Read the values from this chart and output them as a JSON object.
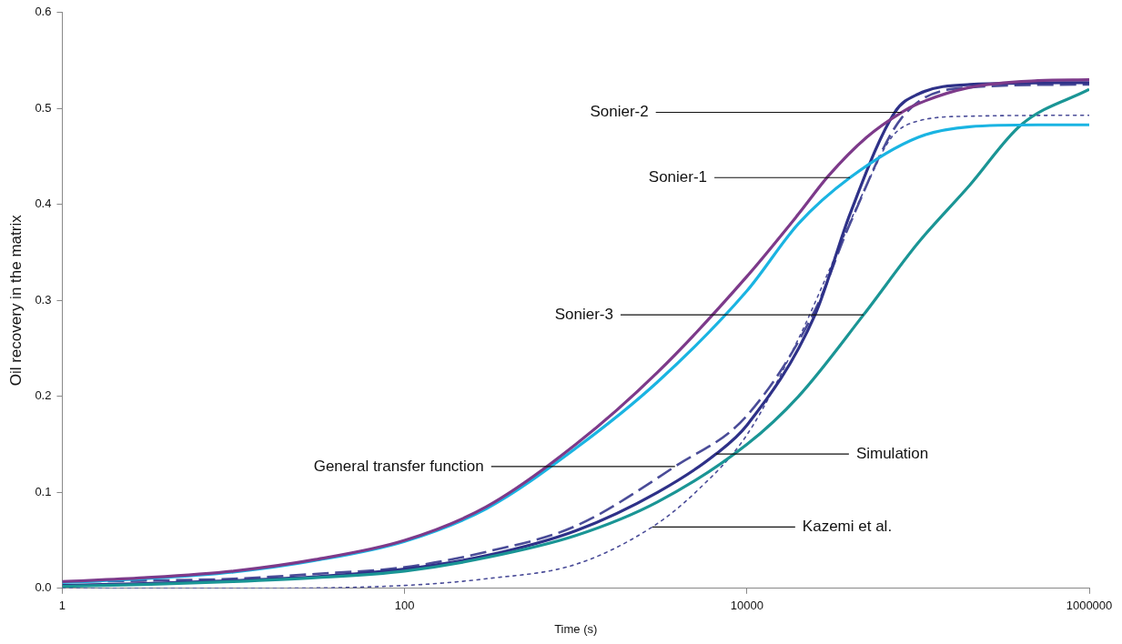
{
  "chart_data": {
    "type": "line",
    "xlabel": "Time (s)",
    "ylabel": "Oil recovery in the matrix",
    "log": "x",
    "grid": false,
    "marker": "none",
    "xlim": [
      1,
      1000000
    ],
    "xticks": [
      1,
      100,
      10000,
      1000000
    ],
    "ylim": [
      0,
      0.6
    ],
    "yticks": [
      {
        "value": 0,
        "label": "0.0"
      },
      0.1,
      0.2,
      0.3,
      0.4,
      0.5,
      0.6
    ],
    "series": [
      {
        "color": "#7d3a8a",
        "line_style": "solid",
        "x": [
          1,
          3,
          10,
          30,
          100,
          300,
          1000,
          3000,
          10000,
          20000,
          30000,
          50000,
          80000,
          100000,
          200000,
          500000,
          1000000
        ],
        "values": [
          0.007,
          0.011,
          0.018,
          0.03,
          0.05,
          0.085,
          0.15,
          0.225,
          0.325,
          0.39,
          0.43,
          0.47,
          0.496,
          0.505,
          0.522,
          0.529,
          0.53
        ]
      },
      {
        "color": "#1ab4e2",
        "line_style": "solid",
        "x": [
          1,
          3,
          10,
          30,
          100,
          300,
          1000,
          3000,
          10000,
          20000,
          40000,
          100000,
          200000,
          500000,
          1000000
        ],
        "values": [
          0.006,
          0.01,
          0.017,
          0.029,
          0.049,
          0.083,
          0.146,
          0.215,
          0.31,
          0.38,
          0.428,
          0.47,
          0.481,
          0.483,
          0.483
        ]
      },
      {
        "color": "#1a9595",
        "line_style": "solid",
        "x": [
          1,
          3,
          10,
          30,
          100,
          300,
          1000,
          3000,
          10000,
          20000,
          48000,
          100000,
          200000,
          400000,
          1000000
        ],
        "values": [
          0.002,
          0.004,
          0.007,
          0.011,
          0.018,
          0.032,
          0.055,
          0.09,
          0.15,
          0.2,
          0.285,
          0.36,
          0.42,
          0.483,
          0.52
        ]
      },
      {
        "color": "#2e3188",
        "line_style": "solid",
        "x": [
          1,
          3,
          10,
          30,
          100,
          300,
          1000,
          3000,
          6600,
          10000,
          25000,
          40000,
          73000,
          100000,
          200000,
          1000000
        ],
        "values": [
          0.003,
          0.005,
          0.008,
          0.012,
          0.02,
          0.034,
          0.06,
          0.1,
          0.14,
          0.17,
          0.285,
          0.39,
          0.496,
          0.515,
          0.525,
          0.527
        ]
      },
      {
        "color": "#4a4c98",
        "line_style": "dashed",
        "x": [
          1,
          3,
          10,
          30,
          100,
          300,
          1000,
          3800,
          10000,
          25000,
          40000,
          80000,
          200000,
          1000000
        ],
        "values": [
          0.007,
          0.008,
          0.01,
          0.015,
          0.022,
          0.038,
          0.065,
          0.127,
          0.18,
          0.29,
          0.38,
          0.49,
          0.522,
          0.525
        ]
      },
      {
        "color": "#4a4c98",
        "line_style": "dotted",
        "x": [
          1,
          10,
          100,
          300,
          1000,
          2800,
          5000,
          10000,
          20000,
          30000,
          50000,
          70000,
          100000,
          200000,
          1000000
        ],
        "values": [
          0,
          0,
          0.003,
          0.01,
          0.025,
          0.064,
          0.1,
          0.16,
          0.26,
          0.33,
          0.42,
          0.47,
          0.487,
          0.492,
          0.493
        ]
      }
    ],
    "annotations": [
      {
        "text": "Sonier-2",
        "x": 80000,
        "y": 0.496
      },
      {
        "text": "Sonier-1",
        "x": 40000,
        "y": 0.428
      },
      {
        "text": "Sonier-3",
        "x": 48000,
        "y": 0.285
      },
      {
        "text": "Simulation",
        "x": 6600,
        "y": 0.14
      },
      {
        "text": "General transfer function",
        "x": 3800,
        "y": 0.127
      },
      {
        "text": "Kazemi et al.",
        "x": 2800,
        "y": 0.064
      }
    ]
  }
}
